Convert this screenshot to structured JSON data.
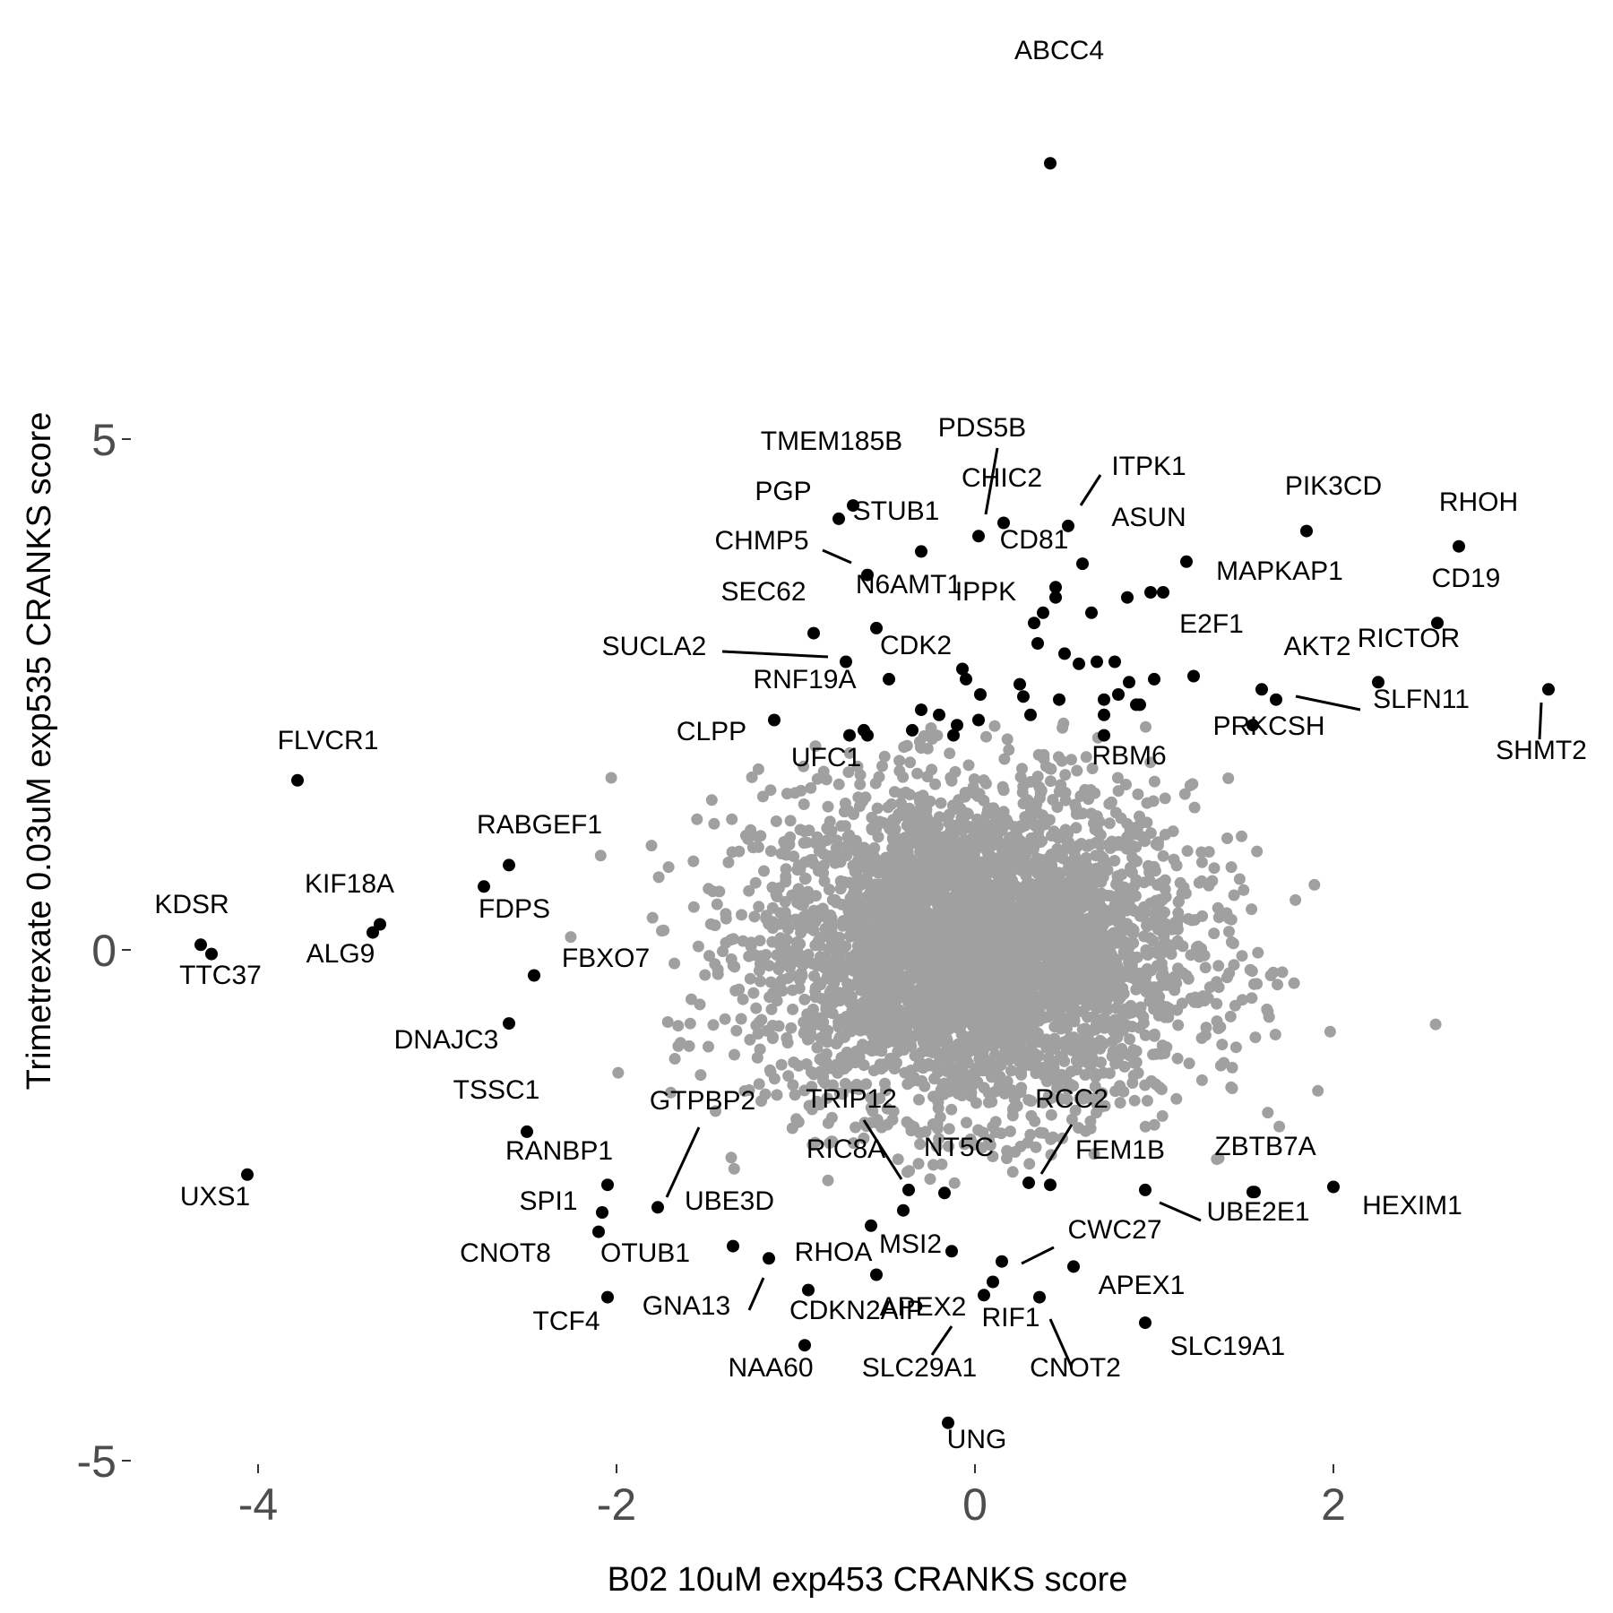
{
  "chart_data": {
    "type": "scatter",
    "title": "",
    "xlabel": "B02 10uM exp453 CRANKS score",
    "ylabel": "Trimetrexate 0.03uM exp535 CRANKS score",
    "xlim": [
      -4.5,
      3.5
    ],
    "ylim": [
      -5.1,
      8.4
    ],
    "x_ticks": [
      -4,
      -2,
      0,
      2
    ],
    "y_ticks": [
      -5,
      0,
      5
    ],
    "x_tick_labels": [
      "-4",
      "-2",
      "0",
      "2"
    ],
    "y_tick_labels": [
      "-5",
      "0",
      "5"
    ],
    "grid": false,
    "colors": {
      "background": "#ffffff",
      "highlight": "#000000",
      "background_points": "#a0a0a0",
      "tick_text": "#4d4d4d"
    },
    "background_cloud": {
      "center": [
        0.0,
        0.0
      ],
      "sd": [
        0.6,
        0.8
      ],
      "count": 4000,
      "color": "#a0a0a0"
    },
    "labeled_points": [
      {
        "gene": "ABCC4",
        "x": 0.42,
        "y": 7.7
      },
      {
        "gene": "RHOH",
        "x": 2.7,
        "y": 3.95
      },
      {
        "gene": "PIK3CD",
        "x": 1.85,
        "y": 4.1
      },
      {
        "gene": "CD19",
        "x": 2.58,
        "y": 3.2
      },
      {
        "gene": "RICTOR",
        "x": 2.25,
        "y": 2.62
      },
      {
        "gene": "SHMT2",
        "x": 3.2,
        "y": 2.55
      },
      {
        "gene": "AKT2",
        "x": 1.6,
        "y": 2.55
      },
      {
        "gene": "SLFN11",
        "x": 1.68,
        "y": 2.45
      },
      {
        "gene": "PRKCSH",
        "x": 1.55,
        "y": 2.2
      },
      {
        "gene": "E2F1",
        "x": 1.22,
        "y": 2.68
      },
      {
        "gene": "MAPKAP1",
        "x": 1.18,
        "y": 3.8
      },
      {
        "gene": "ASUN",
        "x": 0.6,
        "y": 3.78
      },
      {
        "gene": "ITPK1",
        "x": 0.52,
        "y": 4.15
      },
      {
        "gene": "CHIC2",
        "x": 0.16,
        "y": 4.18
      },
      {
        "gene": "PDS5B",
        "x": 0.02,
        "y": 4.05
      },
      {
        "gene": "CD81",
        "x": 0.45,
        "y": 3.55
      },
      {
        "gene": "IPPK",
        "x": 0.38,
        "y": 3.3
      },
      {
        "gene": "TMEM185B",
        "x": -0.68,
        "y": 4.35
      },
      {
        "gene": "PGP",
        "x": -0.76,
        "y": 4.22
      },
      {
        "gene": "STUB1",
        "x": -0.3,
        "y": 3.9
      },
      {
        "gene": "CHMP5",
        "x": -0.6,
        "y": 3.67
      },
      {
        "gene": "N6AMT1",
        "x": -0.55,
        "y": 3.15
      },
      {
        "gene": "SEC62",
        "x": -0.9,
        "y": 3.1
      },
      {
        "gene": "SUCLA2",
        "x": -0.72,
        "y": 2.82
      },
      {
        "gene": "CDK2",
        "x": -0.48,
        "y": 2.65
      },
      {
        "gene": "RNF19A",
        "x": -1.12,
        "y": 2.25
      },
      {
        "gene": "CLPP",
        "x": -0.7,
        "y": 2.1
      },
      {
        "gene": "UFC1",
        "x": -0.6,
        "y": 2.1
      },
      {
        "gene": "RBM6",
        "x": 0.72,
        "y": 2.1
      },
      {
        "gene": "FLVCR1",
        "x": -3.78,
        "y": 1.66
      },
      {
        "gene": "RABGEF1",
        "x": -2.6,
        "y": 0.83
      },
      {
        "gene": "FDPS",
        "x": -2.74,
        "y": 0.62
      },
      {
        "gene": "KIF18A",
        "x": -3.32,
        "y": 0.25
      },
      {
        "gene": "ALG9",
        "x": -3.36,
        "y": 0.17
      },
      {
        "gene": "KDSR",
        "x": -4.32,
        "y": 0.05
      },
      {
        "gene": "TTC37",
        "x": -4.26,
        "y": -0.04
      },
      {
        "gene": "FBXO7",
        "x": -2.46,
        "y": -0.25
      },
      {
        "gene": "DNAJC3",
        "x": -2.6,
        "y": -0.72
      },
      {
        "gene": "TSSC1",
        "x": -2.5,
        "y": -1.78
      },
      {
        "gene": "UXS1",
        "x": -4.06,
        "y": -2.2
      },
      {
        "gene": "RANBP1",
        "x": -2.05,
        "y": -2.3
      },
      {
        "gene": "SPI1",
        "x": -2.08,
        "y": -2.57
      },
      {
        "gene": "CNOT8",
        "x": -2.1,
        "y": -2.76
      },
      {
        "gene": "GTPBP2",
        "x": -1.77,
        "y": -2.52
      },
      {
        "gene": "UBE3D",
        "x": -1.35,
        "y": -2.9
      },
      {
        "gene": "OTUB1",
        "x": -1.15,
        "y": -3.02
      },
      {
        "gene": "TCF4",
        "x": -2.05,
        "y": -3.4
      },
      {
        "gene": "GNA13",
        "x": -0.93,
        "y": -3.33
      },
      {
        "gene": "RHOA",
        "x": -0.55,
        "y": -3.18
      },
      {
        "gene": "NAA60",
        "x": -0.95,
        "y": -3.87
      },
      {
        "gene": "CDKN2AIP",
        "x": -0.58,
        "y": -2.7
      },
      {
        "gene": "TRIP12",
        "x": -0.37,
        "y": -2.35
      },
      {
        "gene": "RIC8A",
        "x": -0.4,
        "y": -2.55
      },
      {
        "gene": "NT5C",
        "x": -0.17,
        "y": -2.38
      },
      {
        "gene": "MSI2",
        "x": -0.13,
        "y": -2.95
      },
      {
        "gene": "APEX2",
        "x": 0.05,
        "y": -3.38
      },
      {
        "gene": "SLC29A1",
        "x": 0.1,
        "y": -3.25
      },
      {
        "gene": "RCC2",
        "x": 0.3,
        "y": -2.28
      },
      {
        "gene": "FEM1B",
        "x": 0.42,
        "y": -2.3
      },
      {
        "gene": "CWC27",
        "x": 0.15,
        "y": -3.05
      },
      {
        "gene": "RIF1",
        "x": 0.36,
        "y": -3.4
      },
      {
        "gene": "CNOT2",
        "x": 0.55,
        "y": -3.1
      },
      {
        "gene": "APEX1",
        "x": 0.95,
        "y": -3.65
      },
      {
        "gene": "SLC19A1",
        "x": 0.95,
        "y": -2.35
      },
      {
        "gene": "UBE2E1",
        "x": 1.56,
        "y": -2.37
      },
      {
        "gene": "ZBTB7A",
        "x": 1.55,
        "y": -2.37
      },
      {
        "gene": "HEXIM1",
        "x": 2.0,
        "y": -2.32
      },
      {
        "gene": "UNG",
        "x": -0.15,
        "y": -4.63
      }
    ],
    "other_highlighted_points": [
      {
        "x": 0.45,
        "y": 3.45
      },
      {
        "x": 0.65,
        "y": 3.3
      },
      {
        "x": 0.85,
        "y": 3.45
      },
      {
        "x": 0.98,
        "y": 3.5
      },
      {
        "x": 1.05,
        "y": 3.5
      },
      {
        "x": 0.33,
        "y": 3.2
      },
      {
        "x": 0.35,
        "y": 3.0
      },
      {
        "x": 0.5,
        "y": 2.9
      },
      {
        "x": 0.58,
        "y": 2.8
      },
      {
        "x": 0.68,
        "y": 2.82
      },
      {
        "x": 0.78,
        "y": 2.82
      },
      {
        "x": 0.86,
        "y": 2.62
      },
      {
        "x": 1.0,
        "y": 2.65
      },
      {
        "x": 0.72,
        "y": 2.45
      },
      {
        "x": 0.8,
        "y": 2.5
      },
      {
        "x": 0.92,
        "y": 2.4
      },
      {
        "x": 0.9,
        "y": 2.4
      },
      {
        "x": 0.72,
        "y": 2.3
      },
      {
        "x": 0.47,
        "y": 2.45
      },
      {
        "x": 0.25,
        "y": 2.6
      },
      {
        "x": 0.27,
        "y": 2.48
      },
      {
        "x": 0.31,
        "y": 2.3
      },
      {
        "x": 0.03,
        "y": 2.5
      },
      {
        "x": -0.2,
        "y": 2.3
      },
      {
        "x": -0.1,
        "y": 2.2
      },
      {
        "x": -0.12,
        "y": 2.1
      },
      {
        "x": -0.3,
        "y": 2.35
      },
      {
        "x": -0.35,
        "y": 2.15
      },
      {
        "x": -0.62,
        "y": 2.15
      },
      {
        "x": 0.02,
        "y": 2.25
      },
      {
        "x": -0.05,
        "y": 2.65
      },
      {
        "x": -0.07,
        "y": 2.75
      }
    ]
  }
}
